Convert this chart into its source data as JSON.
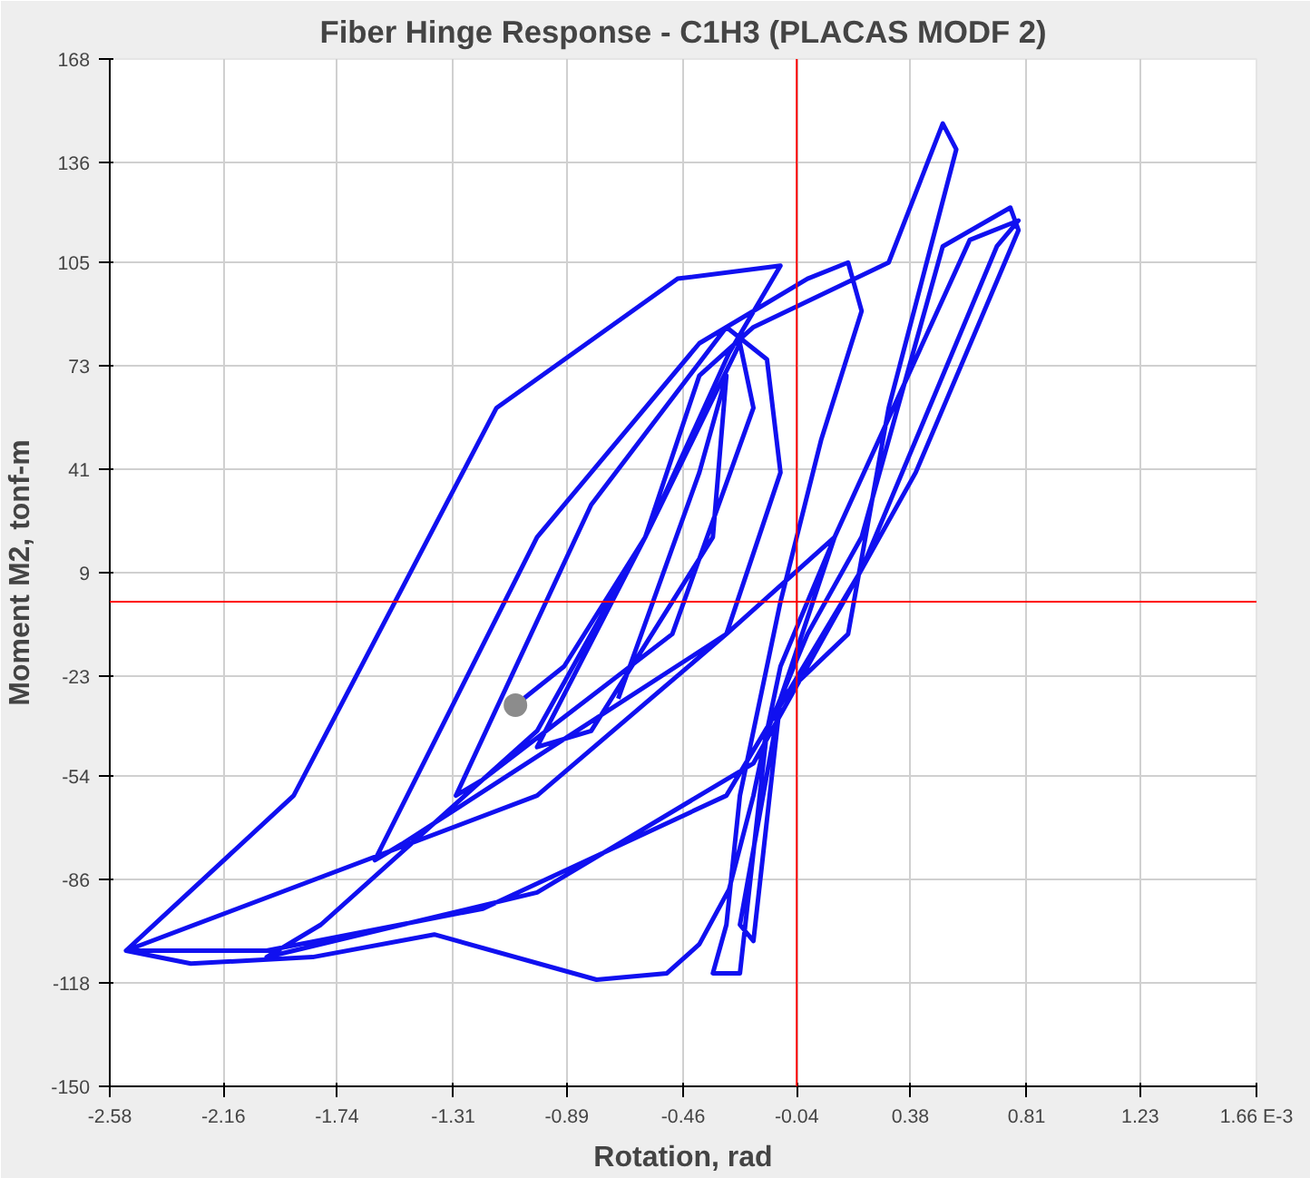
{
  "chart_data": {
    "type": "line",
    "title": "Fiber Hinge Response - C1H3 (PLACAS MODF 2)",
    "xlabel": "Rotation, rad",
    "ylabel": "Moment M2, tonf-m",
    "xlim": [
      -2.58,
      1.66
    ],
    "ylim": [
      -150,
      168
    ],
    "xticks": [
      -2.58,
      -2.16,
      -1.74,
      -1.31,
      -0.89,
      -0.46,
      -0.04,
      0.38,
      0.81,
      1.23,
      {
        "value": 1.66,
        "label": "1.66 E-3"
      }
    ],
    "yticks": [
      -150,
      -118,
      -86,
      -54,
      -23,
      9,
      41,
      73,
      105,
      136,
      168
    ],
    "grid": true,
    "marker": "none",
    "line_style": "solid",
    "ref_lines": [
      {
        "axis": "x",
        "value": -0.04,
        "label": null,
        "color": "#ff0000"
      },
      {
        "axis": "y",
        "value": 0,
        "label": null,
        "color": "#ff0000"
      }
    ],
    "series": [
      {
        "color": "#1010f0",
        "x": [
          -0.7,
          -0.4,
          -0.3,
          -0.35,
          -0.8,
          -1.0,
          -0.6,
          -0.25,
          -0.2,
          -0.5,
          -1.2,
          -1.3,
          -0.8,
          -0.3,
          -0.15,
          -0.1,
          -0.3,
          -1.5,
          -1.6,
          -1.0,
          -0.4,
          0.0,
          0.15,
          0.2,
          0.05,
          -0.1,
          -0.25,
          -0.3,
          -0.35,
          -0.25,
          -0.15,
          0.0,
          0.2,
          0.5,
          0.75,
          0.78,
          0.4,
          -0.2,
          -1.0,
          -1.9,
          -2.0,
          -1.8,
          -1.0,
          -0.6,
          -0.4,
          -0.2,
          0.3,
          0.5,
          0.55,
          0.3,
          0.15,
          -0.1,
          -0.25,
          -0.2,
          -0.1,
          0.1,
          0.6,
          0.78,
          0.7,
          0.2,
          -0.3,
          -1.2,
          -2.0,
          -2.52,
          -2.28,
          -1.83,
          -1.38,
          -0.78,
          -0.52,
          -0.4,
          -0.29,
          -0.2,
          -0.1,
          0.0,
          0.1,
          -0.3,
          -1.0,
          -2.52,
          -1.9,
          -1.15,
          -0.48,
          -0.1,
          -0.29,
          -0.6,
          -0.9,
          -1.08
        ],
        "values": [
          -30,
          40,
          70,
          20,
          -40,
          -45,
          20,
          80,
          60,
          -10,
          -55,
          -60,
          30,
          85,
          75,
          40,
          -10,
          -75,
          -80,
          20,
          80,
          100,
          105,
          90,
          50,
          0,
          -60,
          -100,
          -115,
          -115,
          -40,
          -10,
          20,
          110,
          122,
          115,
          40,
          -50,
          -90,
          -108,
          -110,
          -100,
          -40,
          20,
          70,
          85,
          105,
          148,
          140,
          60,
          -10,
          -30,
          -100,
          -105,
          -30,
          20,
          112,
          118,
          110,
          10,
          -60,
          -95,
          -108,
          -108,
          -112,
          -110,
          -103,
          -117,
          -115,
          -106,
          -89,
          -60,
          -20,
          0,
          20,
          -10,
          -60,
          -108,
          -60,
          60,
          100,
          104,
          77,
          20,
          -20,
          -32
        ]
      },
      {
        "type": "scatter",
        "color": "#8c8c8c",
        "marker": "circle",
        "x": [
          -1.08
        ],
        "values": [
          -32
        ]
      }
    ]
  }
}
